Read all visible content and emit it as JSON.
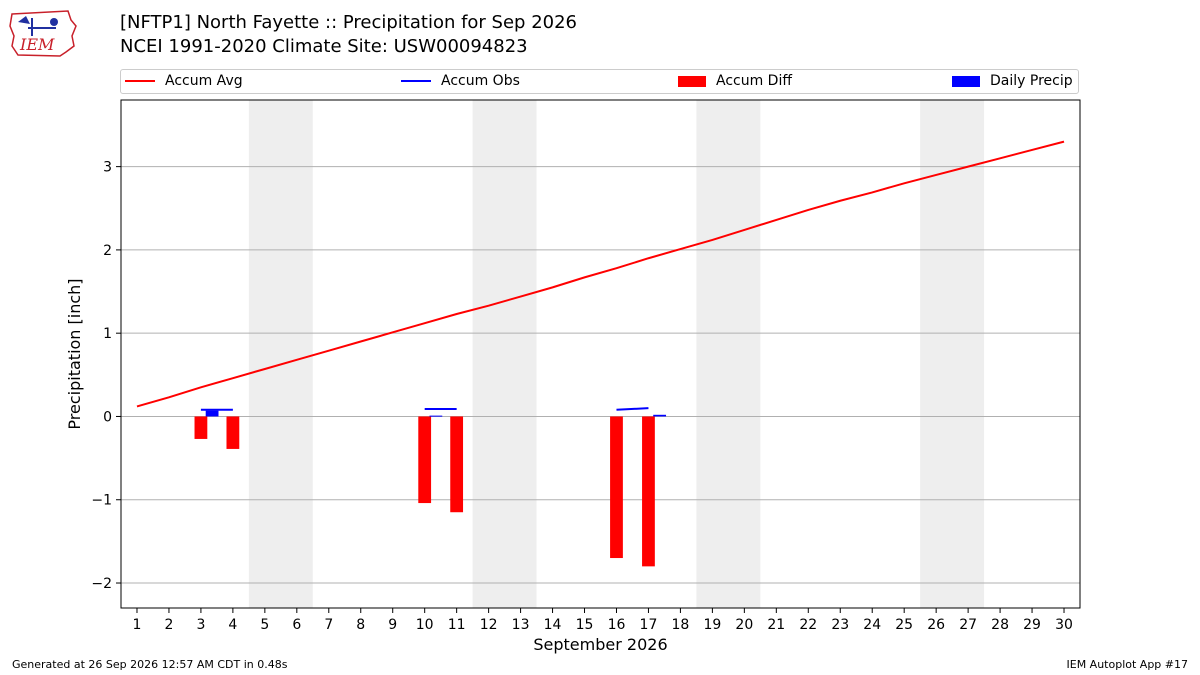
{
  "header": {
    "title_line1": "[NFTP1] North Fayette :: Precipitation for Sep 2026",
    "title_line2": "NCEI 1991-2020 Climate Site: USW00094823",
    "logo_text": "IEM"
  },
  "legend": {
    "items": [
      {
        "label": "Accum Avg",
        "kind": "line",
        "color": "#ff0000"
      },
      {
        "label": "Accum Obs",
        "kind": "line",
        "color": "#0000ff"
      },
      {
        "label": "Accum Diff",
        "kind": "box",
        "color": "#ff0000"
      },
      {
        "label": "Daily Precip",
        "kind": "box",
        "color": "#0000ff"
      }
    ]
  },
  "footer": {
    "left": "Generated at 26 Sep 2026 12:57 AM CDT in 0.48s",
    "right": "IEM Autoplot App #17"
  },
  "chart_data": {
    "type": "bar",
    "title": "[NFTP1] North Fayette :: Precipitation for Sep 2026",
    "subtitle": "NCEI 1991-2020 Climate Site: USW00094823",
    "xlabel": "September 2026",
    "ylabel": "Precipitation [inch]",
    "x": [
      1,
      2,
      3,
      4,
      5,
      6,
      7,
      8,
      9,
      10,
      11,
      12,
      13,
      14,
      15,
      16,
      17,
      18,
      19,
      20,
      21,
      22,
      23,
      24,
      25,
      26,
      27,
      28,
      29,
      30
    ],
    "xlim": [
      0.5,
      30.5
    ],
    "ylim": [
      -2.3,
      3.8
    ],
    "yticks": [
      -2,
      -1,
      0,
      1,
      2,
      3
    ],
    "ytick_labels": [
      "−2",
      "−1",
      "0",
      "1",
      "2",
      "3"
    ],
    "weekend_shading": [
      [
        5,
        6
      ],
      [
        12,
        13
      ],
      [
        19,
        20
      ],
      [
        26,
        27
      ]
    ],
    "grid": true,
    "legend_position": "top",
    "series": [
      {
        "name": "Accum Avg",
        "kind": "line",
        "color": "#ff0000",
        "x": [
          1,
          2,
          3,
          4,
          5,
          6,
          7,
          8,
          9,
          10,
          11,
          12,
          13,
          14,
          15,
          16,
          17,
          18,
          19,
          20,
          21,
          22,
          23,
          24,
          25,
          26,
          27,
          28,
          29,
          30
        ],
        "values": [
          0.12,
          0.23,
          0.35,
          0.46,
          0.57,
          0.68,
          0.79,
          0.9,
          1.01,
          1.12,
          1.23,
          1.33,
          1.44,
          1.55,
          1.67,
          1.78,
          1.9,
          2.01,
          2.12,
          2.24,
          2.36,
          2.48,
          2.59,
          2.69,
          2.8,
          2.9,
          3.0,
          3.1,
          3.2,
          3.3
        ]
      },
      {
        "name": "Accum Obs",
        "kind": "line",
        "color": "#0000ff",
        "x": [
          3,
          4,
          10,
          11,
          16,
          17
        ],
        "values": [
          0.08,
          0.08,
          0.09,
          0.09,
          0.08,
          0.1
        ]
      },
      {
        "name": "Accum Diff",
        "kind": "bar",
        "color": "#ff0000",
        "x": [
          3,
          4,
          10,
          11,
          16,
          17
        ],
        "values": [
          -0.27,
          -0.39,
          -1.04,
          -1.15,
          -1.7,
          -1.8
        ]
      },
      {
        "name": "Daily Precip",
        "kind": "bar",
        "color": "#0000ff",
        "x": [
          3,
          10,
          17
        ],
        "values": [
          0.07,
          0.01,
          0.02
        ]
      }
    ]
  }
}
